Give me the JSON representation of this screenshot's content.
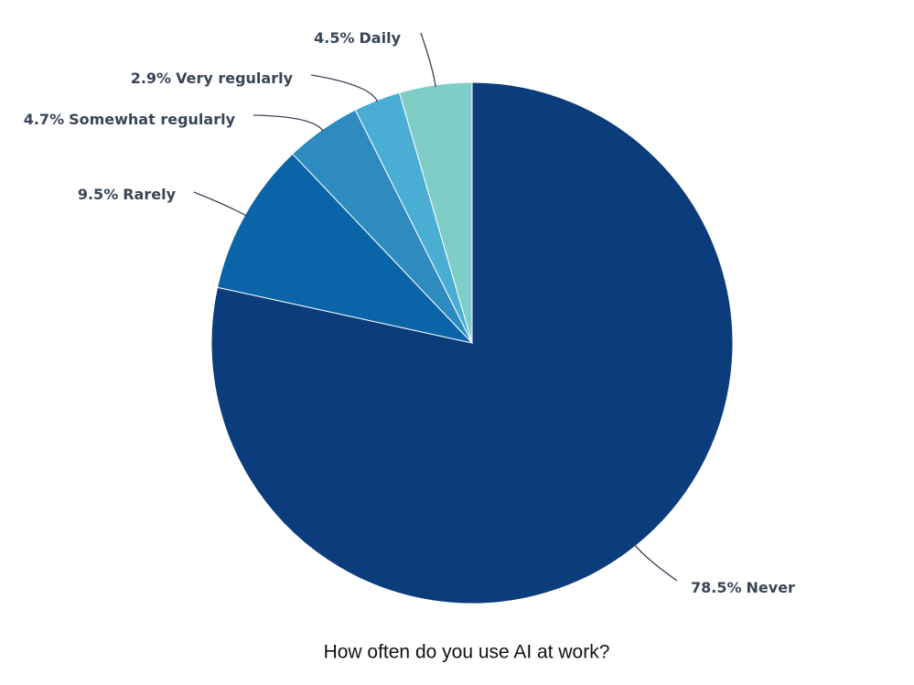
{
  "chart_data": {
    "type": "pie",
    "title": "How often do you use AI at work?",
    "categories": [
      "Never",
      "Rarely",
      "Somewhat regularly",
      "Very regularly",
      "Daily"
    ],
    "values": [
      78.5,
      9.5,
      4.7,
      2.9,
      4.5
    ],
    "value_labels": [
      "78.5%",
      "9.5%",
      "4.7%",
      "2.9%",
      "4.5%"
    ],
    "colors": [
      "#0b3d7c",
      "#0b64a8",
      "#2e8bc0",
      "#4aaed4",
      "#7ecdc6"
    ]
  }
}
